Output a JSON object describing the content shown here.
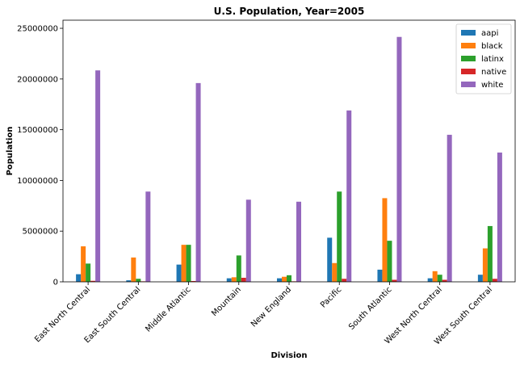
{
  "chart_data": {
    "type": "bar",
    "title": "U.S. Population, Year=2005",
    "xlabel": "Division",
    "ylabel": "Population",
    "ylim": [
      0,
      25800000
    ],
    "yticks": [
      0,
      5000000,
      10000000,
      15000000,
      20000000,
      25000000
    ],
    "ytick_labels": [
      "0",
      "5000000",
      "10000000",
      "15000000",
      "20000000",
      "25000000"
    ],
    "categories": [
      "East North Central",
      "East South Central",
      "Middle Atlantic",
      "Mountain",
      "New England",
      "Pacific",
      "South Atlantic",
      "West North Central",
      "West South Central"
    ],
    "series": [
      {
        "name": "aapi",
        "color": "#1f77b4",
        "values": [
          750000,
          150000,
          1700000,
          350000,
          350000,
          4350000,
          1200000,
          350000,
          700000
        ]
      },
      {
        "name": "black",
        "color": "#ff7f0e",
        "values": [
          3500000,
          2400000,
          3650000,
          450000,
          500000,
          1850000,
          8250000,
          1050000,
          3300000
        ]
      },
      {
        "name": "latinx",
        "color": "#2ca02c",
        "values": [
          1800000,
          300000,
          3650000,
          2600000,
          650000,
          8900000,
          4050000,
          700000,
          5500000
        ]
      },
      {
        "name": "native",
        "color": "#d62728",
        "values": [
          100000,
          50000,
          80000,
          400000,
          50000,
          300000,
          200000,
          200000,
          300000
        ]
      },
      {
        "name": "white",
        "color": "#9467bd",
        "values": [
          20850000,
          8900000,
          19600000,
          8100000,
          7900000,
          16900000,
          24150000,
          14500000,
          12750000
        ]
      }
    ],
    "legend_position": "top-right",
    "grid": false
  }
}
